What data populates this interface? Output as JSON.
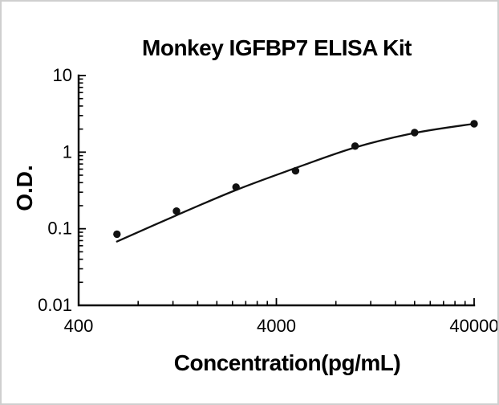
{
  "figure": {
    "background_color": "#ffffff",
    "border_color": "#cfcfcf",
    "text_color": "#000000"
  },
  "chart_data": {
    "type": "scatter",
    "title": "Monkey IGFBP7 ELISA Kit",
    "xlabel": "Concentration(pg/mL)",
    "ylabel": "O.D.",
    "x_scale": "log",
    "y_scale": "log",
    "xlim": [
      400,
      40000
    ],
    "ylim": [
      0.01,
      10
    ],
    "x_major_ticks": [
      400,
      4000,
      40000
    ],
    "x_major_tick_labels": [
      "400",
      "4000",
      "40000"
    ],
    "x_minor_ticks": [
      800,
      1200,
      1600,
      2000,
      2400,
      2800,
      3200,
      3600,
      8000,
      12000,
      16000,
      20000,
      24000,
      28000,
      32000,
      36000
    ],
    "y_major_ticks": [
      0.01,
      0.1,
      1,
      10
    ],
    "y_major_tick_labels": [
      "0.01",
      "0.1",
      "1",
      "10"
    ],
    "y_minor_ticks": [
      0.02,
      0.03,
      0.04,
      0.05,
      0.06,
      0.07,
      0.08,
      0.09,
      0.2,
      0.3,
      0.4,
      0.5,
      0.6,
      0.7,
      0.8,
      0.9,
      2,
      3,
      4,
      5,
      6,
      7,
      8,
      9
    ],
    "grid": false,
    "legend": null,
    "series": [
      {
        "name": "standard-points",
        "marker": "circle",
        "color": "#111111",
        "x": [
          625,
          1250,
          2500,
          5000,
          10000,
          20000,
          40000
        ],
        "y": [
          0.085,
          0.17,
          0.35,
          0.57,
          1.2,
          1.8,
          2.35
        ]
      }
    ],
    "fit_curve": {
      "name": "standard-curve-fit",
      "color": "#111111",
      "x": [
        625,
        1250,
        2500,
        5000,
        10000,
        20000,
        40000
      ],
      "y": [
        0.068,
        0.15,
        0.32,
        0.62,
        1.15,
        1.78,
        2.35
      ]
    }
  }
}
